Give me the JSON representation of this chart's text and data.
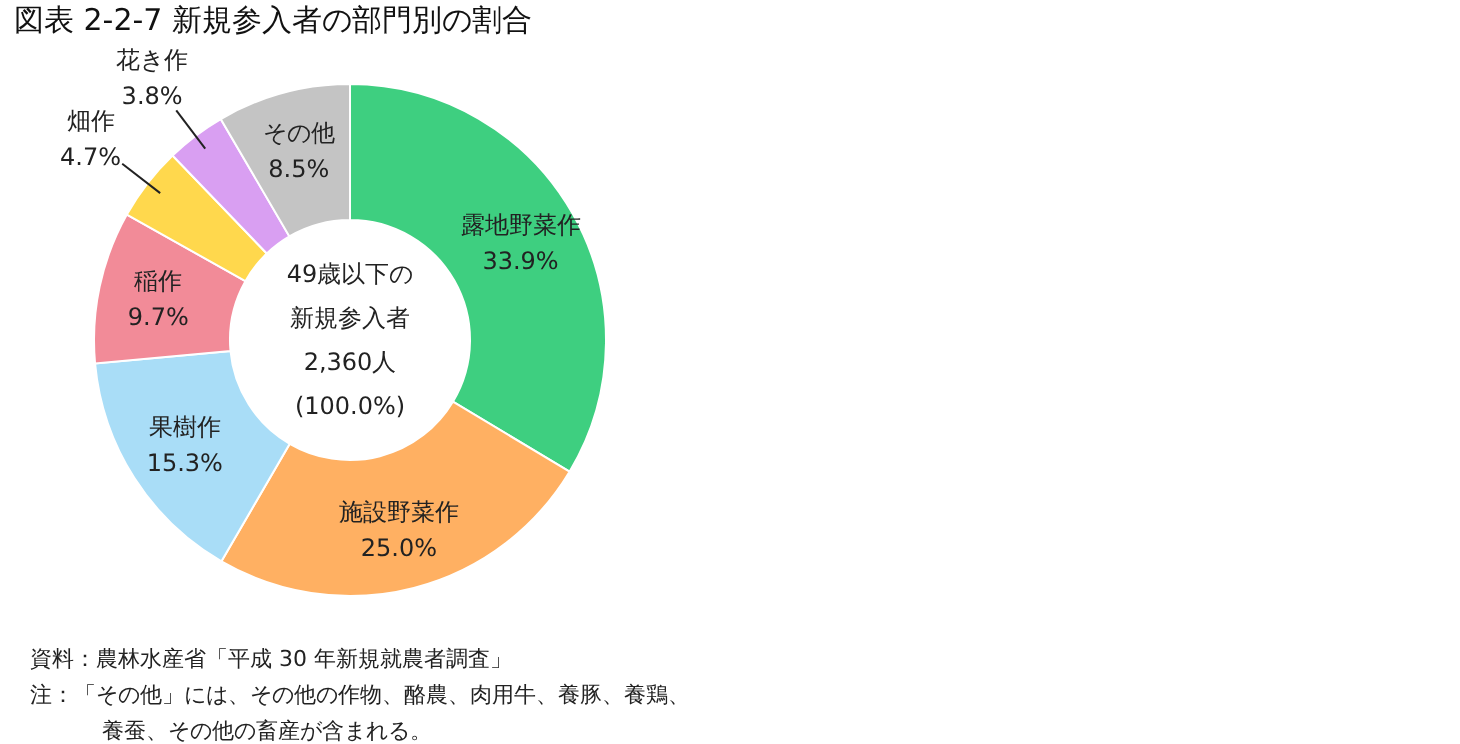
{
  "chart_data": {
    "type": "donut",
    "title": "図表 2-2-7 新規参入者の部門別の割合",
    "categories": [
      "露地野菜作",
      "施設野菜作",
      "果樹作",
      "稲作",
      "畑作",
      "花き作",
      "その他"
    ],
    "values": [
      33.9,
      25.0,
      15.3,
      9.7,
      4.7,
      3.8,
      8.5
    ],
    "colors": [
      "#3ecf80",
      "#ffb062",
      "#a9ddf7",
      "#f28b98",
      "#ffd84d",
      "#d99ff2",
      "#c4c4c4"
    ],
    "value_labels": [
      "33.9%",
      "25.0%",
      "15.3%",
      "9.7%",
      "4.7%",
      "3.8%",
      "8.5%"
    ],
    "annotations": [
      "49歳以下の",
      "新規参入者",
      "2,360人",
      "(100.0%)",
      "資料：農林水産省「平成 30 年新規就農者調査」",
      "注：「その他」には、その他の作物、酪農、肉用牛、養豚、養鶏、",
      "養蚕、その他の畜産が含まれる。"
    ]
  }
}
